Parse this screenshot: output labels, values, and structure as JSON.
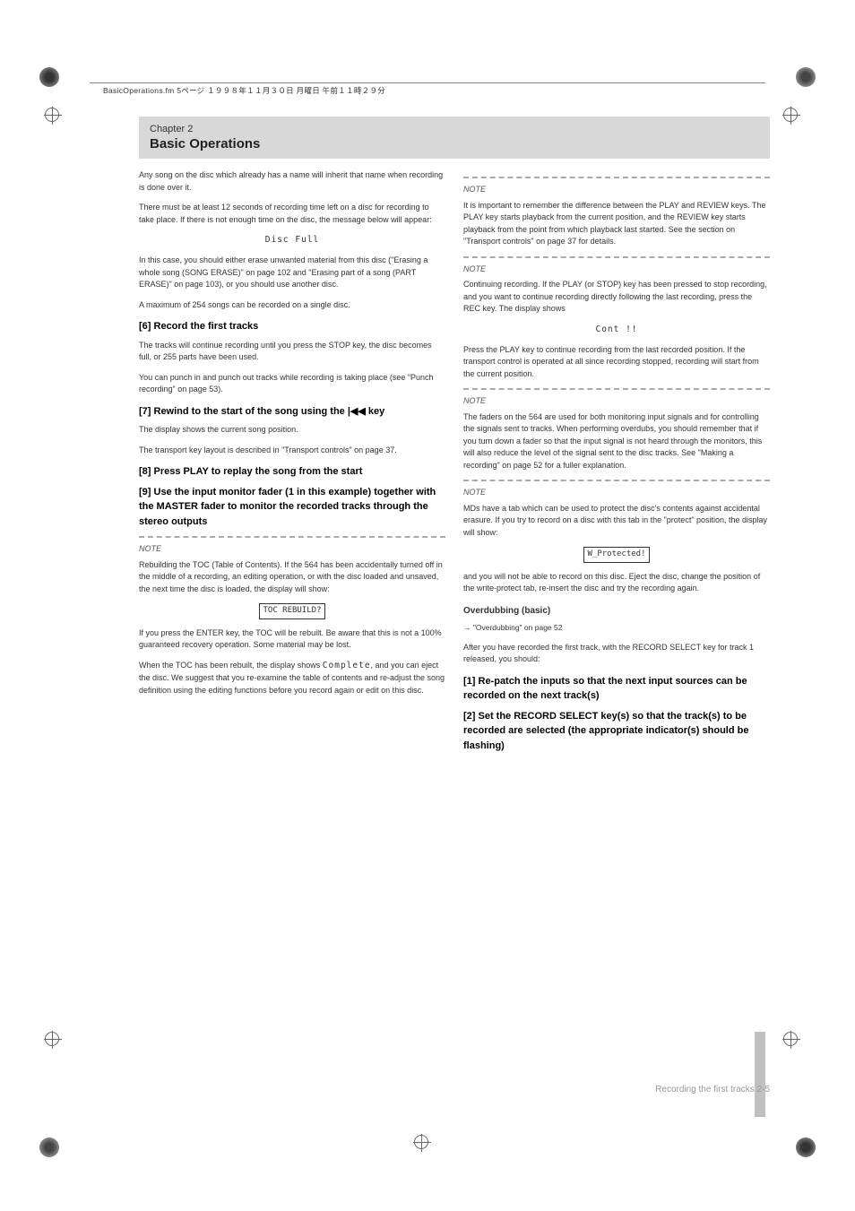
{
  "header": {
    "filename_line": "BasicOperations.fm 5ページ １９９８年１１月３０日 月曜日 午前１１時２９分"
  },
  "chapter": {
    "label": "Chapter 2",
    "title": "Basic Operations"
  },
  "left_col": {
    "p1": "Any song on the disc which already has a name will inherit that name when recording is done over it.",
    "p2": "There must be at least 12 seconds of recording time left on a disc for recording to take place. If there is not enough time on the disc, the message below will appear:",
    "disc_full": "Disc Full",
    "p3": "In this case, you should either erase unwanted material from this disc (\"Erasing a whole song (SONG ERASE)\" on page 102 and \"Erasing part of a song (PART ERASE)\" on page 103), or you should use another disc.",
    "p4": "A maximum of 254 songs can be recorded on a single disc.",
    "s1_title": "[6] Record the first tracks",
    "s1_p1": "The tracks will continue recording until you press the STOP key, the disc becomes full, or 255 parts have been used.",
    "s1_p2": "You can punch in and punch out tracks while recording is taking place (see \"Punch recording\" on page 53).",
    "s2_title": "[7] Rewind to the start of the song using the |◀◀ key",
    "s2_p1": "The display shows the current song position.",
    "s2_p2": "The transport key layout is described in \"Transport controls\" on page 37.",
    "s3_title": "[8] Press PLAY to replay the song from the start",
    "s4_title": "[9] Use the input monitor fader (1 in this example) together with the MASTER fader to monitor the recorded tracks through the stereo outputs",
    "note1_label": "NOTE",
    "note1_text": "Rebuilding the TOC (Table of Contents). If the 564 has been accidentally turned off in the middle of a recording, an editing operation, or with the disc loaded and unsaved, the next time the disc is loaded, the display will show:",
    "toc_rebuild": "TOC REBUILD?",
    "note1_cont1": "If you press the ENTER key, the TOC will be rebuilt. Be aware that this is not a 100% guaranteed recovery operation. Some material may be lost.",
    "note1_cont2": "When the TOC has been rebuilt, the display shows ",
    "complete": "Complete",
    "note1_cont3": ", and you can eject the disc. We suggest that you re-examine the table of contents and re-adjust the song definition using the editing functions before you record again or edit on this disc."
  },
  "right_col": {
    "note2_label": "NOTE",
    "note2_p1": "It is important to remember the difference between the PLAY and REVIEW keys. The PLAY key starts playback from the current position, and the REVIEW key starts playback from the point from which playback last started. See the section on \"Transport controls\" on page 37 for details.",
    "note3_label": "NOTE",
    "note3_p1": "Continuing recording. If the PLAY (or STOP) key has been pressed to stop recording, and you want to continue recording directly following the last recording, press the REC key. The display shows",
    "cont": "Cont !!",
    "note3_p2": "Press the PLAY key to continue recording from the last recorded position. If the transport control is operated at all since recording stopped, recording will start from the current position.",
    "note4_label": "NOTE",
    "note4_p1": "The faders on the 564 are used for both monitoring input signals and for controlling the signals sent to tracks. When performing overdubs, you should remember that if you turn down a fader so that the input signal is not heard through the monitors, this will also reduce the level of the signal sent to the disc tracks. See \"Making a recording\" on page 52 for a fuller explanation.",
    "note5_label": "NOTE",
    "note5_p1": "MDs have a tab which can be used to protect the disc's contents against accidental erasure. If you try to record on a disc with this tab in the \"protect\" position, the display will show:",
    "w_protected": "W_Protected!",
    "note5_p2": "and you will not be able to record on this disc. Eject the disc, change the position of the write-protect tab, re-insert the disc and try the recording again.",
    "overdub_title": "Overdubbing (basic)",
    "overdub_ref": "→ \"Overdubbing\" on page 52",
    "overdub_p1": "After you have recorded the first track, with the RECORD SELECT key for track 1 released, you should:",
    "ov_s1_title": "[1] Re-patch the inputs so that the next input sources can be recorded on the next track(s)",
    "ov_s2_title": "[2] Set the RECORD SELECT key(s) so that the track(s) to be recorded are selected (the appropriate indicator(s) should be flashing)"
  },
  "page_num": "Recording the first tracks    2-5",
  "colors": {
    "header_bg": "#d8d8d8",
    "text": "#333333",
    "dash": "#aaaaaa",
    "sidebar": "#c0c0c0"
  }
}
